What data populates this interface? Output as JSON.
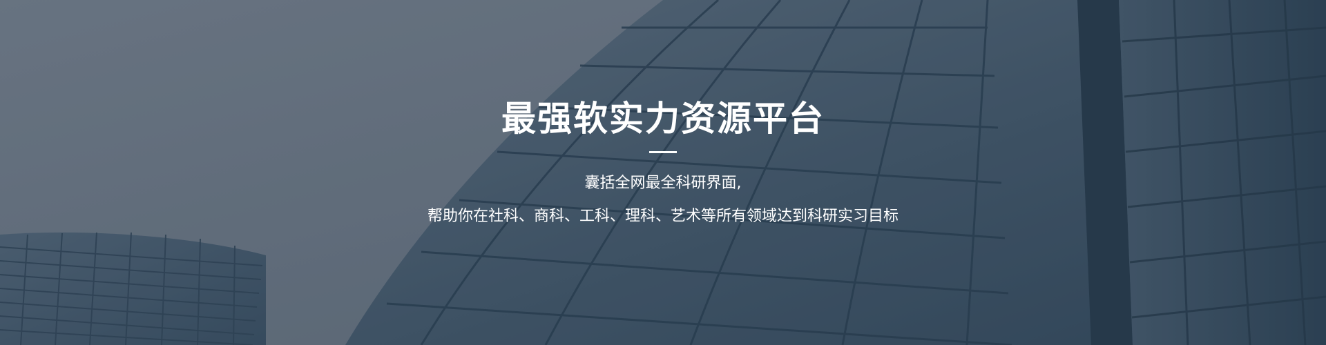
{
  "hero": {
    "title": "最强软实力资源平台",
    "subtitle_line1": "囊括全网最全科研界面,",
    "subtitle_line2": "帮助你在社科、商科、工科、理科、艺术等所有领域达到科研实习目标"
  },
  "colors": {
    "sky": "#6d7886",
    "building_dark": "#2e4457",
    "building_mid": "#3f5568",
    "text": "#ffffff"
  }
}
